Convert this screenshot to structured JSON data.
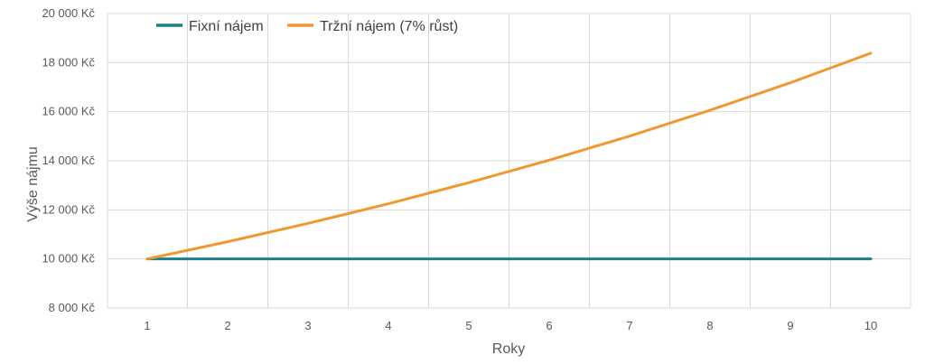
{
  "chart_data": {
    "type": "line",
    "x": [
      1,
      2,
      3,
      4,
      5,
      6,
      7,
      8,
      9,
      10
    ],
    "series": [
      {
        "name": "Fixní nájem",
        "color": "#1a8088",
        "values": [
          10000,
          10000,
          10000,
          10000,
          10000,
          10000,
          10000,
          10000,
          10000,
          10000
        ]
      },
      {
        "name": "Tržní nájem (7% růst)",
        "color": "#f0982e",
        "values": [
          10000,
          10700,
          11449,
          12250,
          13108,
          14026,
          15007,
          16058,
          17182,
          18385
        ]
      }
    ],
    "xlabel": "Roky",
    "ylabel": "Výše nájmu",
    "ylim": [
      8000,
      20000
    ],
    "y_ticks": [
      8000,
      10000,
      12000,
      14000,
      16000,
      18000,
      20000
    ],
    "y_tick_labels": [
      "8 000 Kč",
      "10 000 Kč",
      "12 000 Kč",
      "14 000 Kč",
      "16 000 Kč",
      "18 000 Kč",
      "20 000 Kč"
    ],
    "grid": true,
    "legend_position": "top-left"
  }
}
